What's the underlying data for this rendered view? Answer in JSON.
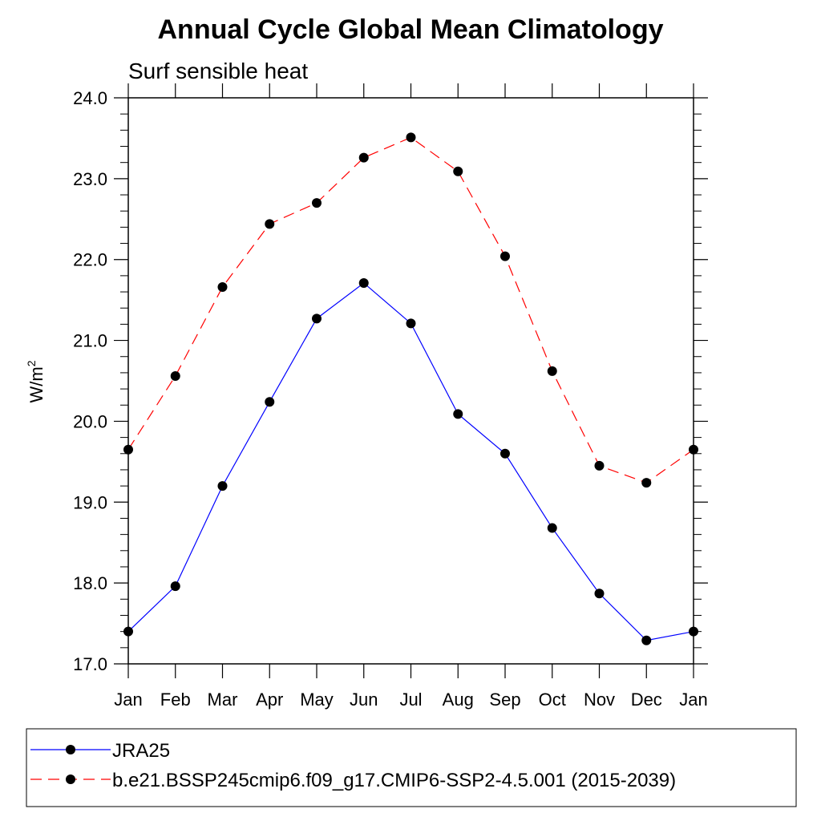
{
  "chart_data": {
    "type": "line",
    "title": "Annual Cycle Global Mean Climatology",
    "subtitle": "Surf sensible heat",
    "ylabel": "W/m",
    "ylabel_superscript": "2",
    "xlabel": "",
    "categories": [
      "Jan",
      "Feb",
      "Mar",
      "Apr",
      "May",
      "Jun",
      "Jul",
      "Aug",
      "Sep",
      "Oct",
      "Nov",
      "Dec",
      "Jan"
    ],
    "ylim": [
      17.0,
      24.0
    ],
    "y_ticks": [
      "17.0",
      "18.0",
      "19.0",
      "20.0",
      "21.0",
      "22.0",
      "23.0",
      "24.0"
    ],
    "grid": false,
    "legend_position": "bottom",
    "series": [
      {
        "name": "JRA25",
        "color": "#0000ff",
        "dash": "solid",
        "marker": "filled-circle",
        "values": [
          17.4,
          17.96,
          19.2,
          20.24,
          21.27,
          21.71,
          21.21,
          20.09,
          19.6,
          18.68,
          17.87,
          17.29,
          17.4
        ]
      },
      {
        "name": "b.e21.BSSP245cmip6.f09_g17.CMIP6-SSP2-4.5.001 (2015-2039)",
        "color": "#ff0000",
        "dash": "dashed",
        "marker": "filled-circle",
        "values": [
          19.65,
          20.56,
          21.66,
          22.44,
          22.7,
          23.26,
          23.51,
          23.09,
          22.04,
          20.62,
          19.45,
          19.24,
          19.65
        ]
      }
    ]
  }
}
